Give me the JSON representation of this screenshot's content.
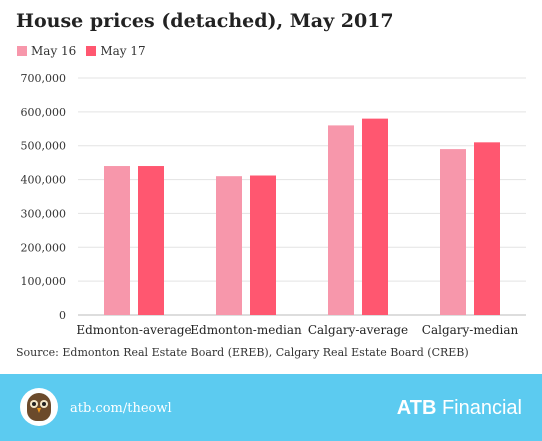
{
  "title": "House prices (detached), May 2017",
  "source_text": "Source: Edmonton Real Estate Board (EREB), Calgary Real Estate Board (CREB)",
  "footer": {
    "link": "atb.com/theowl",
    "brand_bold": "ATB",
    "brand_rest": " Financial",
    "color": "#5ccbf0"
  },
  "chart_data": {
    "type": "bar",
    "categories": [
      "Edmonton-average",
      "Edmonton-median",
      "Calgary-average",
      "Calgary-median"
    ],
    "series": [
      {
        "name": "May 16",
        "color": "#f797ab",
        "values": [
          440000,
          410000,
          560000,
          490000
        ]
      },
      {
        "name": "May 17",
        "color": "#ff5770",
        "values": [
          440000,
          412000,
          580000,
          510000
        ]
      }
    ],
    "yticks": [
      "0",
      "100,000",
      "200,000",
      "300,000",
      "400,000",
      "500,000",
      "600,000",
      "700,000"
    ],
    "ylim": [
      0,
      700000
    ],
    "grid": true,
    "legend_position": "top-left"
  }
}
